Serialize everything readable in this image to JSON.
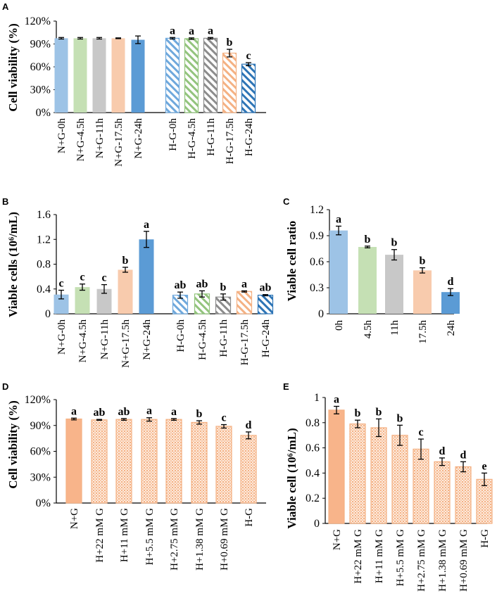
{
  "figure": {
    "colors": {
      "blue": "#9dc3e6",
      "green": "#c5e0b4",
      "gray": "#c8c8c8",
      "orange": "#f8cbad",
      "darkblue": "#5b9bd5",
      "hatch_blue": "#6fa8dc",
      "hatch_green": "#93c47d",
      "hatch_gray": "#8c8c8c",
      "hatch_orange": "#f4b183",
      "hatch_darkblue": "#2e75b6",
      "panel_de_face": "#fbe2d0",
      "panel_de_edge": "#f4b183",
      "solid_orange": "#f8b48a"
    }
  },
  "chart_data": [
    {
      "panel": "A",
      "type": "bar",
      "ylabel": "Cell viability (%)",
      "ylim": [
        0,
        120
      ],
      "yticks": [
        0,
        30,
        60,
        90,
        120
      ],
      "ytick_labels": [
        "0%",
        "30%",
        "60%",
        "90%",
        "120%"
      ],
      "groups": [
        {
          "categories": [
            "N+G-0h",
            "N+G-4.5h",
            "N+G-11h",
            "N+G-17.5h",
            "N+G-24h"
          ],
          "values": [
            97.5,
            97.5,
            97.5,
            97.5,
            95.5
          ],
          "errors": [
            1,
            1,
            1,
            0.5,
            5
          ],
          "sig": [
            "",
            "",
            "",
            "",
            ""
          ],
          "styles": [
            "blue",
            "green",
            "gray",
            "orange",
            "darkblue"
          ],
          "hatched": false
        },
        {
          "categories": [
            "H-G-0h",
            "H-G-4.5h",
            "H-G-11h",
            "H-G-17.5h",
            "H-G-24h"
          ],
          "values": [
            97.5,
            97,
            97.5,
            78,
            63.5
          ],
          "errors": [
            1,
            1,
            1,
            5,
            2
          ],
          "sig": [
            "a",
            "a",
            "a",
            "b",
            "c"
          ],
          "styles": [
            "blue",
            "green",
            "gray",
            "orange",
            "darkblue"
          ],
          "hatched": true
        }
      ]
    },
    {
      "panel": "B",
      "type": "bar",
      "ylabel": "Viable cells (10⁶/mL)",
      "ylim": [
        0,
        1.6
      ],
      "yticks": [
        0,
        0.4,
        0.8,
        1.2,
        1.6
      ],
      "ytick_labels": [
        "0",
        "0.4",
        "0.8",
        "1.2",
        "1.6"
      ],
      "groups": [
        {
          "categories": [
            "N+G-0h",
            "N+G-4.5h",
            "N+G-11h",
            "N+G-17.5h",
            "N+G-24h"
          ],
          "values": [
            0.31,
            0.43,
            0.4,
            0.71,
            1.2
          ],
          "errors": [
            0.07,
            0.05,
            0.07,
            0.04,
            0.13
          ],
          "sig": [
            "c",
            "c",
            "c",
            "b",
            "a"
          ],
          "styles": [
            "blue",
            "green",
            "gray",
            "orange",
            "darkblue"
          ],
          "hatched": false
        },
        {
          "categories": [
            "H-G-0h",
            "H-G-4.5h",
            "H-G-11h",
            "H-G-17.5h",
            "H-G-24h"
          ],
          "values": [
            0.3,
            0.32,
            0.27,
            0.36,
            0.3
          ],
          "errors": [
            0.05,
            0.05,
            0.05,
            0.01,
            0.01
          ],
          "sig": [
            "ab",
            "ab",
            "b",
            "a",
            "ab"
          ],
          "styles": [
            "blue",
            "green",
            "gray",
            "orange",
            "darkblue"
          ],
          "hatched": true
        }
      ]
    },
    {
      "panel": "C",
      "type": "bar",
      "ylabel": "Viable cell ratio",
      "ylim": [
        0,
        1.2
      ],
      "yticks": [
        0,
        0.3,
        0.6,
        0.9,
        1.2
      ],
      "ytick_labels": [
        "0",
        "0.3",
        "0.6",
        "0.9",
        "1.2"
      ],
      "groups": [
        {
          "categories": [
            "0h",
            "4.5h",
            "11h",
            "17.5h",
            "24h"
          ],
          "values": [
            0.96,
            0.77,
            0.68,
            0.5,
            0.25
          ],
          "errors": [
            0.05,
            0.01,
            0.06,
            0.03,
            0.04
          ],
          "sig": [
            "a",
            "b",
            "b",
            "b",
            "d"
          ],
          "styles": [
            "blue",
            "green",
            "gray",
            "orange",
            "darkblue"
          ],
          "hatched": false
        }
      ]
    },
    {
      "panel": "D",
      "type": "bar",
      "ylabel": "Cell viability (%)",
      "ylim": [
        0,
        120
      ],
      "yticks": [
        0,
        30,
        60,
        90,
        120
      ],
      "ytick_labels": [
        "0%",
        "30%",
        "60%",
        "90%",
        "120%"
      ],
      "groups": [
        {
          "categories": [
            "N+G",
            "H+22 mM G",
            "H+11 mM G",
            "H+5.5 mM G",
            "H+2.75 mM G",
            "H+1.38 mM G",
            "H+0.69 mM G",
            "H-G"
          ],
          "values": [
            97.5,
            96.5,
            97,
            97,
            97,
            93.5,
            89,
            78.5
          ],
          "errors": [
            1,
            0.5,
            1,
            2,
            1,
            2,
            2,
            4
          ],
          "sig": [
            "a",
            "ab",
            "ab",
            "a",
            "a",
            "b",
            "c",
            "d"
          ],
          "styles": [
            "solid_orange",
            "dotted",
            "dotted",
            "dotted",
            "dotted",
            "dotted",
            "dotted",
            "dotted"
          ],
          "hatched": false
        }
      ]
    },
    {
      "panel": "E",
      "type": "bar",
      "ylabel": "Viable cell (10⁶/mL)",
      "ylim": [
        0,
        1
      ],
      "yticks": [
        0,
        0.2,
        0.4,
        0.6,
        0.8,
        1
      ],
      "ytick_labels": [
        "0",
        "0.2",
        "0.4",
        "0.6",
        "0.8",
        "1"
      ],
      "groups": [
        {
          "categories": [
            "N+G",
            "H+22 mM G",
            "H+11 mM G",
            "H+5.5 mM G",
            "H+2.75 mM G",
            "H+1.38 mM G",
            "H+0.69 mM G",
            "H-G"
          ],
          "values": [
            0.9,
            0.79,
            0.76,
            0.7,
            0.59,
            0.49,
            0.45,
            0.35
          ],
          "errors": [
            0.03,
            0.03,
            0.07,
            0.08,
            0.08,
            0.03,
            0.04,
            0.05
          ],
          "sig": [
            "a",
            "b",
            "b",
            "b",
            "c",
            "d",
            "d",
            "e"
          ],
          "styles": [
            "solid_orange",
            "dotted",
            "dotted",
            "dotted",
            "dotted",
            "dotted",
            "dotted",
            "dotted"
          ],
          "hatched": false
        }
      ]
    }
  ]
}
